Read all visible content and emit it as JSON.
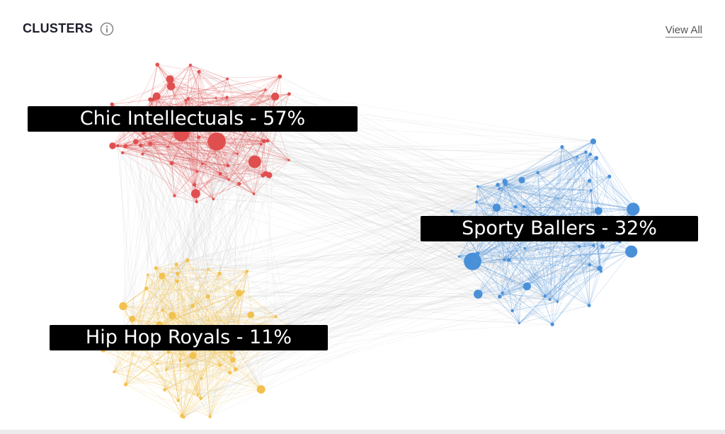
{
  "header": {
    "title": "CLUSTERS",
    "info_icon": "info-icon",
    "view_all_label": "View All"
  },
  "clusters": [
    {
      "id": "chic",
      "label": "Chic Intellectuals - 57%",
      "percent": 57,
      "color": "#e04f4f"
    },
    {
      "id": "sporty",
      "label": "Sporty Ballers - 32%",
      "percent": 32,
      "color": "#4a90d9"
    },
    {
      "id": "hiphop",
      "label": "Hip Hop Royals - 11%",
      "percent": 11,
      "color": "#f2c14e"
    }
  ],
  "colors": {
    "inter_cluster_edge": "#c8c8c8",
    "label_background": "#000000",
    "label_text": "#ffffff"
  }
}
